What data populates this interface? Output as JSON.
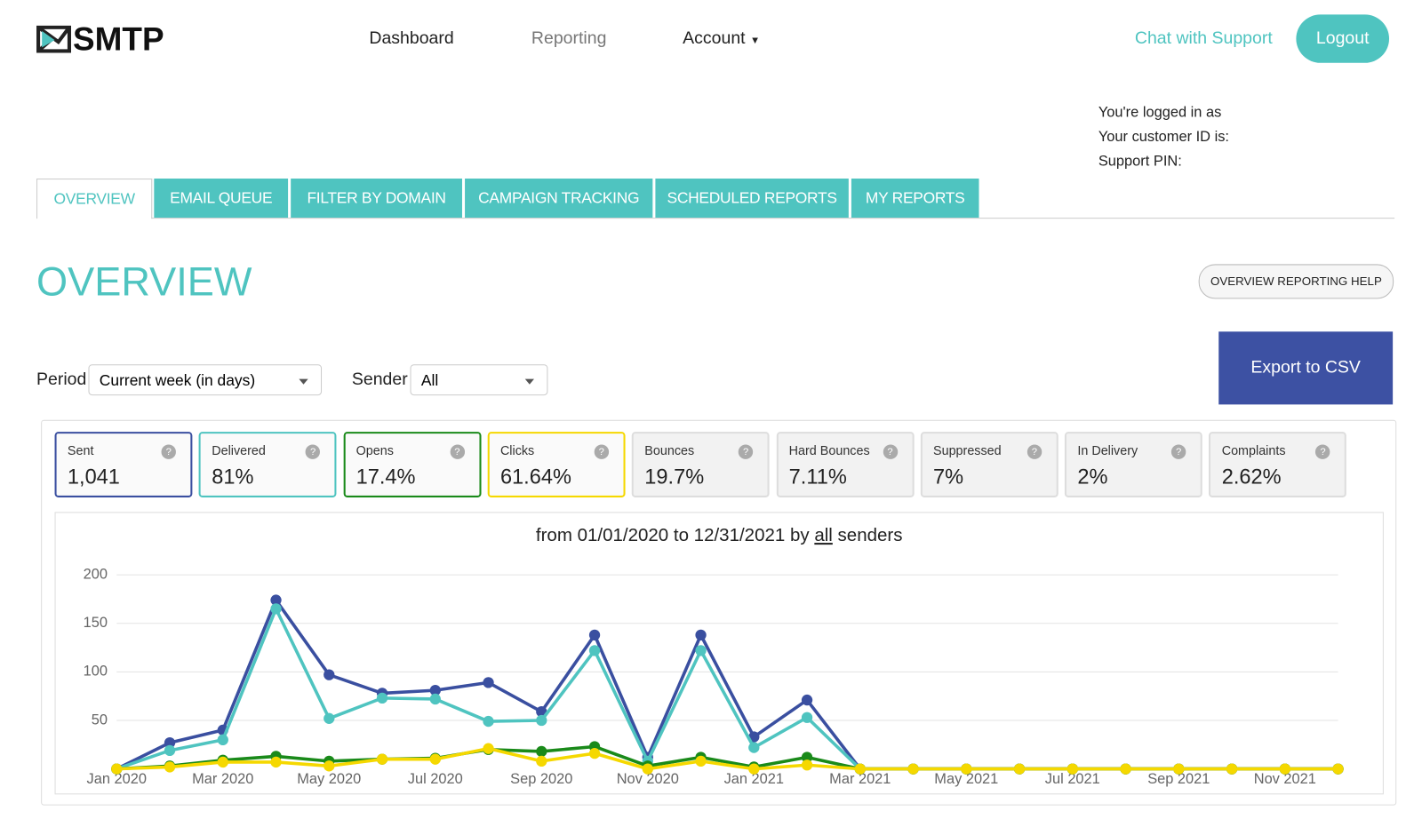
{
  "header": {
    "logo": "SMTP",
    "nav": [
      "Dashboard",
      "Reporting",
      "Account"
    ],
    "chat": "Chat with Support",
    "logout": "Logout"
  },
  "account": {
    "logged_in": "You're logged in as",
    "customer_id": "Your customer ID is:",
    "pin": "Support PIN:"
  },
  "tabs": [
    "OVERVIEW",
    "EMAIL QUEUE",
    "FILTER BY DOMAIN",
    "CAMPAIGN TRACKING",
    "SCHEDULED REPORTS",
    "MY REPORTS"
  ],
  "page": {
    "heading": "OVERVIEW",
    "help": "OVERVIEW REPORTING HELP",
    "export": "Export to CSV"
  },
  "filters": {
    "period_label": "Period",
    "period_value": "Current week (in days)",
    "sender_label": "Sender",
    "sender_value": "All"
  },
  "stats": [
    {
      "label": "Sent",
      "value": "1,041"
    },
    {
      "label": "Delivered",
      "value": "81%"
    },
    {
      "label": "Opens",
      "value": "17.4%"
    },
    {
      "label": "Clicks",
      "value": "61.64%"
    },
    {
      "label": "Bounces",
      "value": "19.7%"
    },
    {
      "label": "Hard Bounces",
      "value": "7.11%"
    },
    {
      "label": "Suppressed",
      "value": "7%"
    },
    {
      "label": "In Delivery",
      "value": "2%"
    },
    {
      "label": "Complaints",
      "value": "2.62%"
    }
  ],
  "chart_data": {
    "type": "line",
    "title_prefix": "from 01/01/2020 to 12/31/2021 by",
    "title_link": "all",
    "title_suffix": "senders",
    "categories": [
      "Jan 2020",
      null,
      "Mar 2020",
      null,
      "May 2020",
      null,
      "Jul 2020",
      null,
      "Sep 2020",
      null,
      "Nov 2020",
      null,
      "Jan 2021",
      null,
      "Mar 2021",
      null,
      "May 2021",
      null,
      "Jul 2021",
      null,
      "Sep 2021",
      null,
      "Nov 2021",
      null
    ],
    "series": [
      {
        "color": "#3a4fa0",
        "values": [
          0,
          27,
          40,
          174,
          97,
          78,
          81,
          89,
          59,
          138,
          12,
          138,
          33,
          71,
          0,
          0,
          0,
          0,
          0,
          0,
          0,
          0,
          0,
          0
        ]
      },
      {
        "color": "#4fc4c0",
        "values": [
          0,
          19,
          30,
          165,
          52,
          73,
          72,
          49,
          50,
          122,
          8,
          122,
          22,
          53,
          0,
          0,
          0,
          0,
          0,
          0,
          0,
          0,
          0,
          0
        ]
      },
      {
        "color": "#1a8a1a",
        "values": [
          0,
          3,
          9,
          13,
          8,
          10,
          11,
          20,
          18,
          23,
          3,
          12,
          2,
          12,
          0,
          0,
          0,
          0,
          0,
          0,
          0,
          0,
          0,
          0
        ]
      },
      {
        "color": "#f5d800",
        "values": [
          0,
          2,
          7,
          7,
          3,
          10,
          10,
          21,
          8,
          16,
          0,
          8,
          0,
          4,
          0,
          0,
          0,
          0,
          0,
          0,
          0,
          0,
          0,
          0
        ]
      }
    ],
    "ylim": [
      0,
      200
    ],
    "yticks": [
      50,
      100,
      150,
      200
    ],
    "grid": true
  }
}
